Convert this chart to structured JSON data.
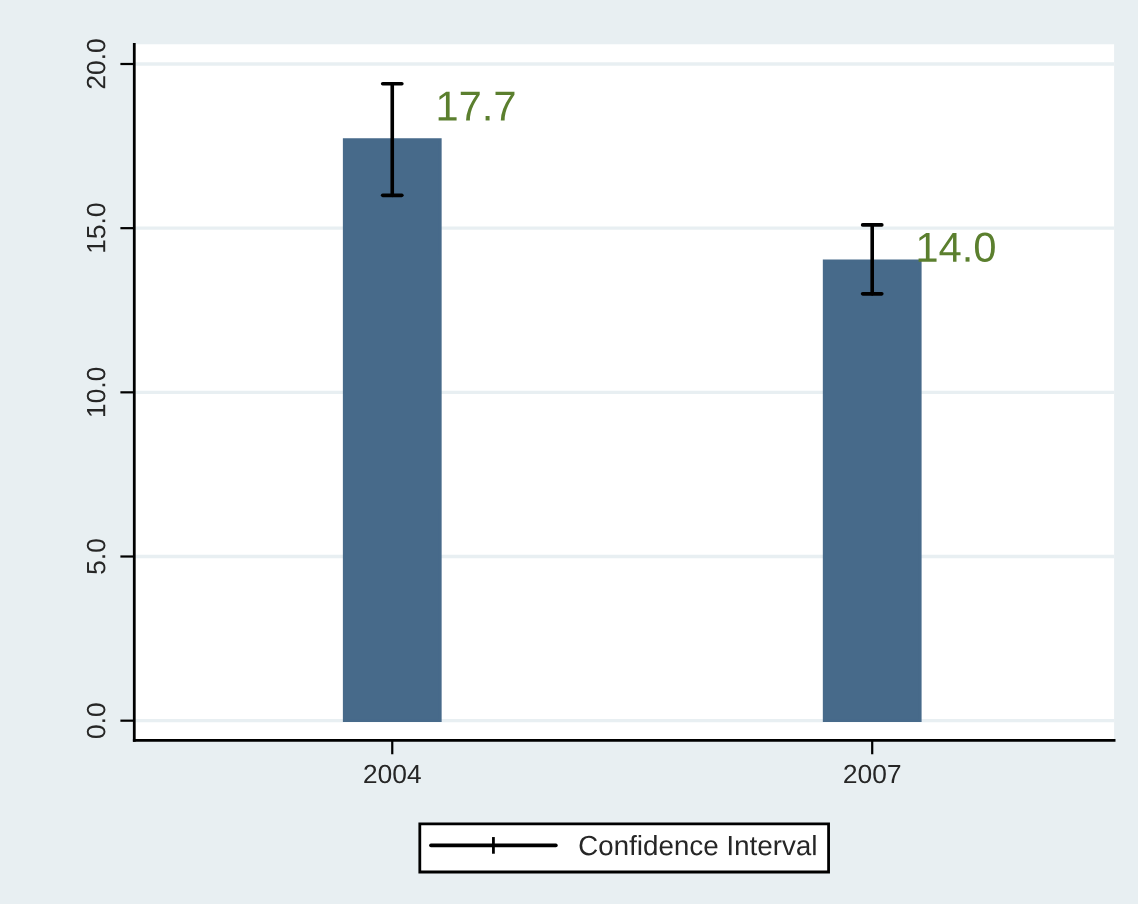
{
  "chart_data": {
    "type": "bar",
    "categories": [
      "2004",
      "2007"
    ],
    "series": [
      {
        "name": "Confidence Interval",
        "color": "#476a8a",
        "values": [
          17.7,
          14.0
        ],
        "errors": [
          [
            16.0,
            19.4
          ],
          [
            13.0,
            15.1
          ]
        ],
        "value_labels": [
          "17.7",
          "14.0"
        ]
      }
    ],
    "ylim": [
      -0.6,
      20.6
    ],
    "yticks": [
      {
        "value": 0,
        "label": "0.0"
      },
      {
        "value": 5,
        "label": "5.0"
      },
      {
        "value": 10,
        "label": "10.0"
      },
      {
        "value": 15,
        "label": "15.0"
      },
      {
        "value": 20,
        "label": "20.0"
      }
    ],
    "grid": "y",
    "legend": "bottom"
  }
}
